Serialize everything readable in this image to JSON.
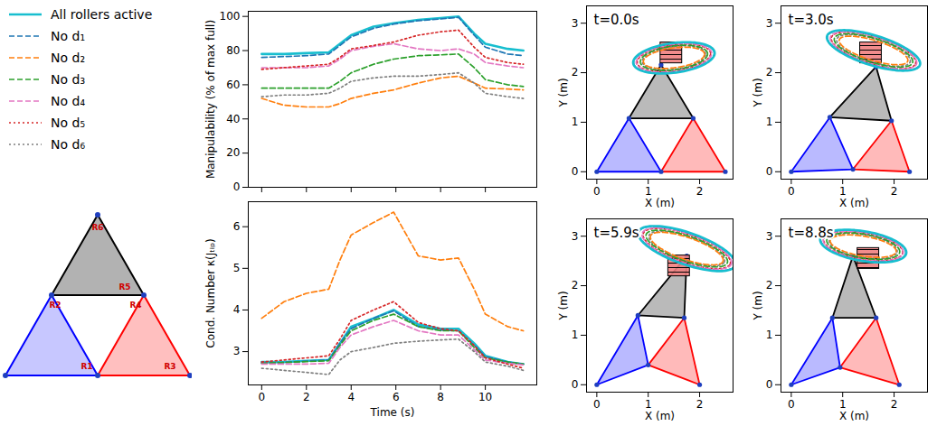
{
  "chart_data": [
    {
      "type": "line",
      "y_label": "Manipulability (% of max full)",
      "legend": "left",
      "tick_labels": "y",
      "x": [
        0,
        1,
        2,
        3,
        3.5,
        4,
        5,
        5.9,
        7,
        8,
        8.8,
        9.5,
        10,
        11,
        11.7
      ],
      "xlim": [
        -0.6,
        12.3
      ],
      "xticks": [
        0,
        2,
        4,
        6,
        8,
        10
      ],
      "ylim": [
        0,
        103
      ],
      "yticks": [
        0,
        20,
        40,
        60,
        80,
        100
      ],
      "series": [
        {
          "name": "All rollers active",
          "color": "#17becf",
          "line_style": "solid",
          "values": [
            78,
            78,
            78.5,
            79,
            84,
            89,
            94,
            96,
            98,
            99,
            100,
            90,
            84,
            81,
            80
          ]
        },
        {
          "name": "No d₁",
          "color": "#1f77b4",
          "line_style": "dashed",
          "values": [
            76,
            76.5,
            77,
            78,
            83,
            88,
            93,
            95.5,
            97.5,
            98.5,
            99.5,
            89,
            82,
            78,
            77
          ]
        },
        {
          "name": "No d₂",
          "color": "#ff7f0e",
          "line_style": "dashed",
          "values": [
            52,
            48,
            47,
            47,
            49,
            52,
            55,
            57,
            61,
            64,
            65,
            61,
            58,
            57.5,
            57
          ]
        },
        {
          "name": "No d₃",
          "color": "#2ca02c",
          "line_style": "dashed",
          "values": [
            58,
            58,
            58,
            58,
            62,
            67,
            72,
            75,
            77,
            77.5,
            78,
            70,
            63,
            60,
            59
          ]
        },
        {
          "name": "No d₄",
          "color": "#e377c2",
          "line_style": "dashed",
          "values": [
            70,
            70,
            70,
            71,
            75,
            80,
            82.5,
            84,
            81,
            80,
            81,
            78,
            73,
            71,
            70
          ]
        },
        {
          "name": "No d₅",
          "color": "#d62728",
          "line_style": "dotted",
          "values": [
            69,
            70,
            71,
            72,
            76,
            81,
            83,
            85,
            89,
            91,
            92,
            82,
            76,
            73,
            72
          ]
        },
        {
          "name": "No d₆",
          "color": "#7f7f7f",
          "line_style": "dotted",
          "values": [
            53,
            54,
            54,
            55,
            58,
            62,
            64,
            65,
            65,
            66,
            67,
            61,
            55,
            53,
            52
          ]
        }
      ]
    },
    {
      "type": "line",
      "x_label": "Time (s)",
      "y_label": "Cond. Number κ(Jₜᵢₚ)",
      "x": [
        0,
        1,
        2,
        3,
        3.5,
        4,
        5,
        5.9,
        7,
        8,
        8.8,
        9.5,
        10,
        11,
        11.7
      ],
      "xlim": [
        -0.6,
        12.3
      ],
      "xticks": [
        0,
        2,
        4,
        6,
        8,
        10
      ],
      "ylim": [
        2.2,
        6.6
      ],
      "yticks": [
        3,
        4,
        5,
        6
      ],
      "series": [
        {
          "name": "All rollers active",
          "color": "#17becf",
          "line_style": "solid",
          "values": [
            2.75,
            2.75,
            2.78,
            2.8,
            3.2,
            3.6,
            3.8,
            4.0,
            3.65,
            3.55,
            3.55,
            3.2,
            2.9,
            2.75,
            2.7
          ]
        },
        {
          "name": "No d₁",
          "color": "#1f77b4",
          "line_style": "dashed",
          "values": [
            2.72,
            2.74,
            2.77,
            2.8,
            3.2,
            3.55,
            3.8,
            3.98,
            3.6,
            3.52,
            3.5,
            3.15,
            2.88,
            2.75,
            2.7
          ]
        },
        {
          "name": "No d₂",
          "color": "#ff7f0e",
          "line_style": "dashed",
          "values": [
            3.8,
            4.2,
            4.4,
            4.5,
            5.2,
            5.8,
            6.1,
            6.35,
            5.3,
            5.2,
            5.25,
            4.5,
            3.9,
            3.6,
            3.5
          ]
        },
        {
          "name": "No d₃",
          "color": "#2ca02c",
          "line_style": "dashed",
          "values": [
            2.72,
            2.74,
            2.76,
            2.78,
            3.15,
            3.5,
            3.75,
            3.9,
            3.6,
            3.5,
            3.5,
            3.1,
            2.85,
            2.75,
            2.7
          ]
        },
        {
          "name": "No d₄",
          "color": "#e377c2",
          "line_style": "dashed",
          "values": [
            2.7,
            2.7,
            2.7,
            2.72,
            3.1,
            3.4,
            3.6,
            3.75,
            3.5,
            3.4,
            3.4,
            3.05,
            2.8,
            2.72,
            2.68
          ]
        },
        {
          "name": "No d₅",
          "color": "#d62728",
          "line_style": "dotted",
          "values": [
            2.75,
            2.8,
            2.85,
            2.9,
            3.3,
            3.75,
            4.0,
            4.2,
            3.7,
            3.55,
            3.5,
            3.15,
            2.85,
            2.7,
            2.6
          ]
        },
        {
          "name": "No d₆",
          "color": "#7f7f7f",
          "line_style": "dotted",
          "values": [
            2.6,
            2.55,
            2.5,
            2.45,
            2.8,
            3.0,
            3.1,
            3.2,
            3.25,
            3.28,
            3.3,
            3.0,
            2.75,
            2.65,
            2.55
          ]
        }
      ]
    },
    {
      "type": "geometry",
      "title": "t=0.0s",
      "x_label": "X (m)",
      "y_label": "Y (m)",
      "xlim": [
        -0.2,
        2.65
      ],
      "xticks": [
        0,
        1,
        2
      ],
      "ylim": [
        -0.15,
        3.35
      ],
      "yticks": [
        0,
        1,
        2,
        3
      ],
      "triangles": [
        {
          "color": "blue",
          "vertices": [
            [
              0,
              0
            ],
            [
              1.25,
              0
            ],
            [
              0.625,
              1.08
            ]
          ]
        },
        {
          "color": "red",
          "vertices": [
            [
              1.25,
              0
            ],
            [
              2.5,
              0
            ],
            [
              1.875,
              1.08
            ]
          ]
        },
        {
          "color": "black",
          "vertices": [
            [
              0.625,
              1.08
            ],
            [
              1.875,
              1.08
            ],
            [
              1.25,
              2.16
            ]
          ]
        }
      ],
      "box": {
        "cx": 1.45,
        "cy": 2.4,
        "size": 0.42,
        "color": "#f08080"
      },
      "ellipse": {
        "cx": 1.5,
        "cy": 2.3,
        "angle": 8,
        "sizes": [
          {
            "series": "All rollers active",
            "rx": 0.8,
            "ry": 0.3
          },
          {
            "series": "No d₁",
            "rx": 0.79,
            "ry": 0.29
          },
          {
            "series": "No d₂",
            "rx": 0.6,
            "ry": 0.2
          },
          {
            "series": "No d₃",
            "rx": 0.66,
            "ry": 0.24
          },
          {
            "series": "No d₄",
            "rx": 0.74,
            "ry": 0.27
          },
          {
            "series": "No d₅",
            "rx": 0.72,
            "ry": 0.26
          },
          {
            "series": "No d₆",
            "rx": 0.62,
            "ry": 0.23
          }
        ]
      }
    },
    {
      "type": "geometry",
      "title": "t=3.0s",
      "x_label": "X (m)",
      "y_label": "Y (m)",
      "xlim": [
        -0.2,
        2.65
      ],
      "xticks": [
        0,
        1,
        2
      ],
      "ylim": [
        -0.15,
        3.35
      ],
      "yticks": [
        0,
        1,
        2,
        3
      ],
      "triangles": [
        {
          "color": "blue",
          "vertices": [
            [
              0,
              0
            ],
            [
              1.2,
              0.05
            ],
            [
              0.75,
              1.1
            ]
          ]
        },
        {
          "color": "red",
          "vertices": [
            [
              1.2,
              0.05
            ],
            [
              2.3,
              0
            ],
            [
              1.95,
              1.03
            ]
          ]
        },
        {
          "color": "black",
          "vertices": [
            [
              0.75,
              1.1
            ],
            [
              1.95,
              1.03
            ],
            [
              1.65,
              2.12
            ]
          ]
        }
      ],
      "box": {
        "cx": 1.55,
        "cy": 2.4,
        "size": 0.42,
        "color": "#f08080"
      },
      "ellipse": {
        "cx": 1.6,
        "cy": 2.45,
        "angle": -18,
        "sizes": [
          {
            "series": "All rollers active",
            "rx": 0.95,
            "ry": 0.3
          },
          {
            "series": "No d₁",
            "rx": 0.94,
            "ry": 0.29
          },
          {
            "series": "No d₂",
            "rx": 0.7,
            "ry": 0.2
          },
          {
            "series": "No d₃",
            "rx": 0.8,
            "ry": 0.24
          },
          {
            "series": "No d₄",
            "rx": 0.88,
            "ry": 0.27
          },
          {
            "series": "No d₅",
            "rx": 0.86,
            "ry": 0.27
          },
          {
            "series": "No d₆",
            "rx": 0.75,
            "ry": 0.23
          }
        ]
      }
    },
    {
      "type": "geometry",
      "title": "t=5.9s",
      "x_label": "X (m)",
      "y_label": "Y (m)",
      "xlim": [
        -0.2,
        2.65
      ],
      "xticks": [
        0,
        1,
        2
      ],
      "ylim": [
        -0.15,
        3.35
      ],
      "yticks": [
        0,
        1,
        2,
        3
      ],
      "triangles": [
        {
          "color": "blue",
          "vertices": [
            [
              0,
              0
            ],
            [
              1.0,
              0.4
            ],
            [
              0.8,
              1.4
            ]
          ]
        },
        {
          "color": "red",
          "vertices": [
            [
              1.0,
              0.4
            ],
            [
              2.0,
              0
            ],
            [
              1.7,
              1.35
            ]
          ]
        },
        {
          "color": "black",
          "vertices": [
            [
              0.8,
              1.4
            ],
            [
              1.7,
              1.35
            ],
            [
              1.75,
              2.6
            ]
          ]
        }
      ],
      "box": {
        "cx": 1.6,
        "cy": 2.4,
        "size": 0.42,
        "color": "#f08080"
      },
      "ellipse": {
        "cx": 1.75,
        "cy": 2.75,
        "angle": -20,
        "sizes": [
          {
            "series": "All rollers active",
            "rx": 1.0,
            "ry": 0.32
          },
          {
            "series": "No d₁",
            "rx": 0.99,
            "ry": 0.31
          },
          {
            "series": "No d₂",
            "rx": 0.75,
            "ry": 0.22
          },
          {
            "series": "No d₃",
            "rx": 0.84,
            "ry": 0.25
          },
          {
            "series": "No d₄",
            "rx": 0.92,
            "ry": 0.29
          },
          {
            "series": "No d₅",
            "rx": 0.9,
            "ry": 0.28
          },
          {
            "series": "No d₆",
            "rx": 0.78,
            "ry": 0.24
          }
        ]
      }
    },
    {
      "type": "geometry",
      "title": "t=8.8s",
      "x_label": "X (m)",
      "y_label": "Y (m)",
      "xlim": [
        -0.2,
        2.65
      ],
      "xticks": [
        0,
        1,
        2
      ],
      "ylim": [
        -0.15,
        3.35
      ],
      "yticks": [
        0,
        1,
        2,
        3
      ],
      "triangles": [
        {
          "color": "blue",
          "vertices": [
            [
              0,
              0
            ],
            [
              0.95,
              0.35
            ],
            [
              0.8,
              1.35
            ]
          ]
        },
        {
          "color": "red",
          "vertices": [
            [
              0.95,
              0.35
            ],
            [
              2.1,
              0
            ],
            [
              1.65,
              1.35
            ]
          ]
        },
        {
          "color": "black",
          "vertices": [
            [
              0.8,
              1.35
            ],
            [
              1.65,
              1.35
            ],
            [
              1.2,
              2.6
            ]
          ]
        }
      ],
      "box": {
        "cx": 1.5,
        "cy": 2.55,
        "size": 0.42,
        "color": "#f08080"
      },
      "ellipse": {
        "cx": 1.4,
        "cy": 2.8,
        "angle": -10,
        "sizes": [
          {
            "series": "All rollers active",
            "rx": 0.85,
            "ry": 0.3
          },
          {
            "series": "No d₁",
            "rx": 0.84,
            "ry": 0.29
          },
          {
            "series": "No d₂",
            "rx": 0.65,
            "ry": 0.2
          },
          {
            "series": "No d₃",
            "rx": 0.72,
            "ry": 0.24
          },
          {
            "series": "No d₄",
            "rx": 0.79,
            "ry": 0.27
          },
          {
            "series": "No d₅",
            "rx": 0.78,
            "ry": 0.26
          },
          {
            "series": "No d₆",
            "rx": 0.67,
            "ry": 0.23
          }
        ]
      }
    }
  ],
  "diagram": {
    "roller_labels": [
      "R1",
      "R2",
      "R3",
      "R4",
      "R5",
      "R6"
    ]
  }
}
